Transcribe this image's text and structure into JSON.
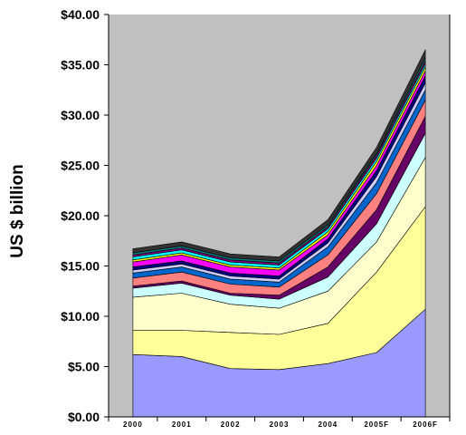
{
  "chart_data": {
    "type": "area",
    "stacked": true,
    "title": "",
    "xlabel": "",
    "ylabel": "US $ billion",
    "ylim": [
      0,
      40
    ],
    "y_tick_values": [
      0,
      5,
      10,
      15,
      20,
      25,
      30,
      35,
      40
    ],
    "y_tick_labels": [
      "$0.00",
      "$5.00",
      "$10.00",
      "$15.00",
      "$20.00",
      "$25.00",
      "$30.00",
      "$35.00",
      "$40.00"
    ],
    "categories": [
      "2000",
      "2001",
      "2002",
      "2003",
      "2004",
      "2005F",
      "2006F"
    ],
    "grid": false,
    "legend": "none",
    "plot_background": "#c0c0c0",
    "series": [
      {
        "color": "#9999ff",
        "values": [
          6.2,
          6.0,
          4.8,
          4.7,
          5.3,
          6.4,
          10.7
        ]
      },
      {
        "color": "#ffff99",
        "values": [
          2.4,
          2.6,
          3.6,
          3.5,
          4.0,
          8.0,
          10.2
        ]
      },
      {
        "color": "#ffffcc",
        "values": [
          3.3,
          3.7,
          2.8,
          2.6,
          3.2,
          3.0,
          4.9
        ]
      },
      {
        "color": "#ccffff",
        "values": [
          0.9,
          1.0,
          0.9,
          0.9,
          1.4,
          1.8,
          2.4
        ]
      },
      {
        "color": "#660066",
        "values": [
          0.2,
          0.2,
          0.2,
          0.4,
          1.0,
          1.4,
          1.7
        ]
      },
      {
        "color": "#ff8080",
        "values": [
          0.8,
          0.9,
          0.9,
          0.8,
          1.2,
          1.6,
          1.6
        ]
      },
      {
        "color": "#0066cc",
        "values": [
          0.5,
          0.5,
          0.5,
          0.5,
          0.8,
          1.1,
          1.0
        ]
      },
      {
        "color": "#ccccff",
        "values": [
          0.3,
          0.3,
          0.3,
          0.3,
          0.4,
          0.6,
          0.7
        ]
      },
      {
        "color": "#000080",
        "values": [
          0.3,
          0.3,
          0.3,
          0.3,
          0.4,
          0.6,
          0.7
        ]
      },
      {
        "color": "#ff00ff",
        "values": [
          0.5,
          0.6,
          0.6,
          0.6,
          0.4,
          0.5,
          0.5
        ]
      },
      {
        "color": "#ffff00",
        "values": [
          0.2,
          0.2,
          0.2,
          0.2,
          0.3,
          0.4,
          0.4
        ]
      },
      {
        "color": "#00ffff",
        "values": [
          0.3,
          0.3,
          0.3,
          0.3,
          0.3,
          0.3,
          0.3
        ]
      },
      {
        "color": "#800080",
        "values": [
          0.2,
          0.2,
          0.2,
          0.2,
          0.2,
          0.3,
          0.3
        ]
      },
      {
        "color": "#008080",
        "values": [
          0.2,
          0.2,
          0.2,
          0.2,
          0.2,
          0.2,
          0.3
        ]
      },
      {
        "color": "#333333",
        "values": [
          0.4,
          0.4,
          0.4,
          0.4,
          0.5,
          0.6,
          0.8
        ]
      }
    ]
  }
}
